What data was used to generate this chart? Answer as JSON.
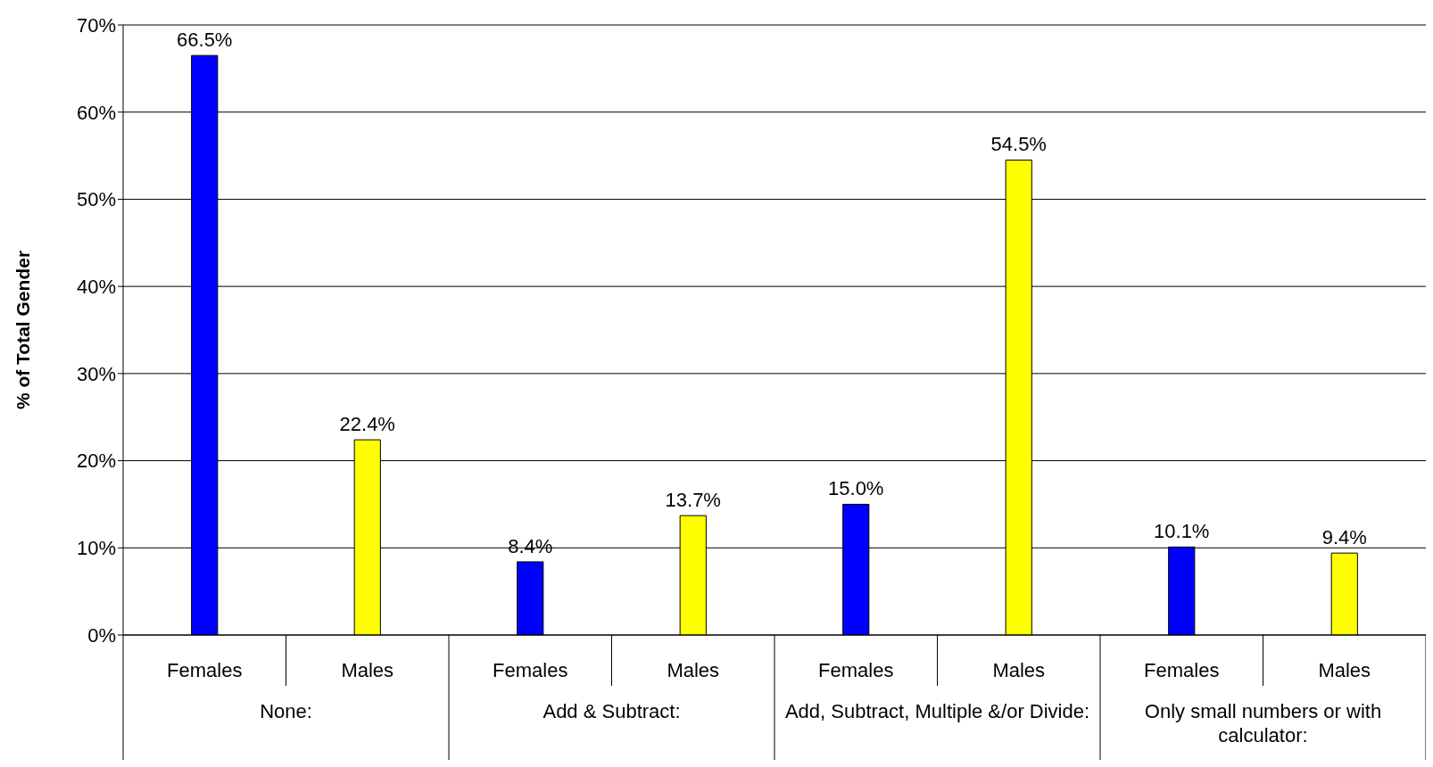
{
  "chart_data": {
    "type": "bar",
    "ylabel": "% of Total Gender",
    "categories": [
      "Females",
      "Males",
      "Females",
      "Males",
      "Females",
      "Males",
      "Females",
      "Males"
    ],
    "values": [
      66.5,
      22.4,
      8.4,
      13.7,
      15.0,
      54.5,
      10.1,
      9.4
    ],
    "colors": [
      "#0000ff",
      "#ffff00",
      "#0000ff",
      "#ffff00",
      "#0000ff",
      "#ffff00",
      "#0000ff",
      "#ffff00"
    ],
    "value_labels": [
      "66.5%",
      "22.4%",
      "8.4%",
      "13.7%",
      "15.0%",
      "54.5%",
      "10.1%",
      "9.4%"
    ],
    "ylim": [
      0,
      70
    ],
    "yticks": [
      {
        "value": 0,
        "label": "0%"
      },
      {
        "value": 10,
        "label": "10%"
      },
      {
        "value": 20,
        "label": "20%"
      },
      {
        "value": 30,
        "label": "30%"
      },
      {
        "value": 40,
        "label": "40%"
      },
      {
        "value": 50,
        "label": "50%"
      },
      {
        "value": 60,
        "label": "60%"
      },
      {
        "value": 70,
        "label": "70%"
      }
    ],
    "grid": "y",
    "annotations": [
      "None:",
      "Add & Subtract:",
      "Add, Subtract, Multiple &/or Divide:",
      "Only small numbers or with calculator:"
    ]
  }
}
